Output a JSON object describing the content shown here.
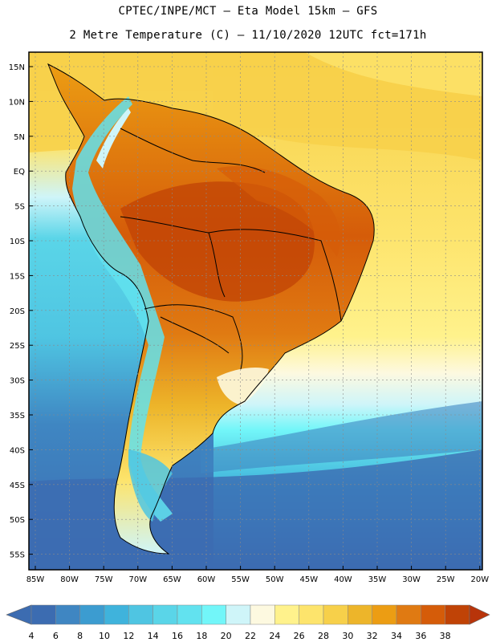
{
  "header": {
    "line1": "CPTEC/INPE/MCT –  Eta Model 15km – GFS",
    "line2": "2 Metre Temperature (C) – 11/10/2020 12UTC fct=171h"
  },
  "map": {
    "lat_labels": [
      "15N",
      "10N",
      "5N",
      "EQ",
      "5S",
      "10S",
      "15S",
      "20S",
      "25S",
      "30S",
      "35S",
      "40S",
      "45S",
      "50S",
      "55S"
    ],
    "lon_labels": [
      "85W",
      "80W",
      "75W",
      "70W",
      "65W",
      "60W",
      "55W",
      "50W",
      "45W",
      "40W",
      "35W",
      "30W",
      "25W",
      "20W"
    ]
  },
  "colorbar": {
    "labels": [
      "4",
      "6",
      "8",
      "10",
      "12",
      "14",
      "16",
      "18",
      "20",
      "22",
      "24",
      "26",
      "28",
      "30",
      "32",
      "34",
      "36",
      "38"
    ],
    "colors": [
      "#3c6cb1",
      "#3f86c2",
      "#3c9cd0",
      "#3fb3dc",
      "#4fc5e2",
      "#5ad5e8",
      "#62e2ef",
      "#72f6f9",
      "#cff5f9",
      "#fdf9e0",
      "#fff28c",
      "#fde46c",
      "#f7d04a",
      "#edb52a",
      "#ec9d13",
      "#e07a12",
      "#d55c09",
      "#c04306"
    ]
  }
}
